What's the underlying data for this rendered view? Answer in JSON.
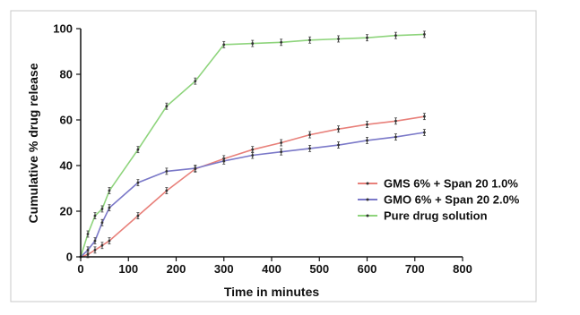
{
  "chart_data": {
    "type": "line",
    "title": "",
    "xlabel": "Time in minutes",
    "ylabel": "Cumulative % drug release",
    "xlim": [
      0,
      800
    ],
    "ylim": [
      0,
      100
    ],
    "x_ticks": [
      0,
      100,
      200,
      300,
      400,
      500,
      600,
      700,
      800
    ],
    "y_ticks": [
      0,
      20,
      40,
      60,
      80,
      100
    ],
    "grid": false,
    "legend_position": "right",
    "error_bars": true,
    "series": [
      {
        "name": "GMS 6% + Span 20 1.0%",
        "color": "#e8807a",
        "x": [
          0,
          15,
          30,
          45,
          60,
          120,
          180,
          240,
          300,
          360,
          420,
          480,
          540,
          600,
          660,
          720
        ],
        "y": [
          0,
          1,
          3,
          5,
          7,
          18,
          29,
          38.5,
          43,
          47,
          50,
          53.5,
          56,
          58,
          59.5,
          61.5
        ]
      },
      {
        "name": "GMO 6% + Span 20 2.0%",
        "color": "#7a78c8",
        "x": [
          0,
          15,
          30,
          45,
          60,
          120,
          180,
          240,
          300,
          360,
          420,
          480,
          540,
          600,
          660,
          720
        ],
        "y": [
          0,
          3,
          7,
          15,
          21.5,
          32.5,
          37.5,
          38.8,
          42,
          44.5,
          46,
          47.5,
          49,
          51,
          52.5,
          54.5
        ]
      },
      {
        "name": "Pure drug solution",
        "color": "#8ed47c",
        "x": [
          0,
          15,
          30,
          45,
          60,
          120,
          180,
          240,
          300,
          360,
          420,
          480,
          540,
          600,
          660,
          720
        ],
        "y": [
          0,
          10,
          18,
          21,
          29,
          47,
          66,
          77,
          93,
          93.5,
          94,
          95,
          95.5,
          96,
          97,
          97.5
        ]
      }
    ]
  }
}
